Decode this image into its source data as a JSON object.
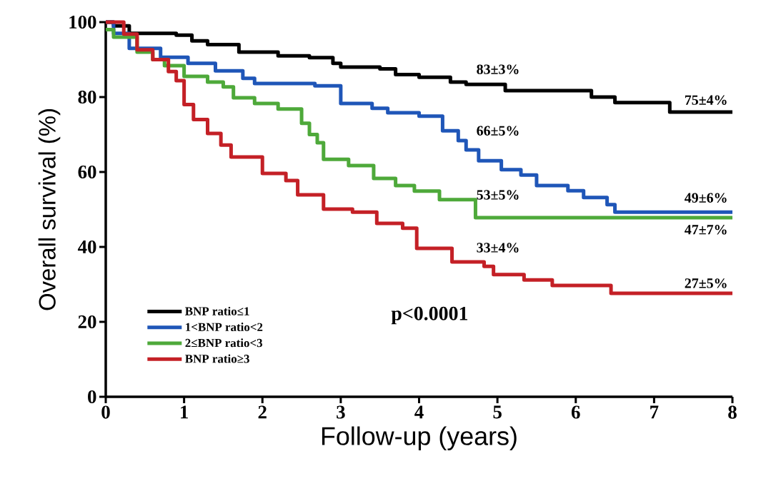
{
  "chart_data": {
    "type": "step",
    "xlabel": "Follow-up (years)",
    "ylabel": "Overall survival (%)",
    "xlim": [
      0,
      8
    ],
    "ylim": [
      0,
      100
    ],
    "xticks": [
      0,
      1,
      2,
      3,
      4,
      5,
      6,
      7,
      8
    ],
    "yticks": [
      0,
      20,
      40,
      60,
      80,
      100
    ],
    "grid": false,
    "legend": "bottom left",
    "line_style": "solid",
    "marker": "none",
    "series": [
      {
        "name": "BNP ratio≤1",
        "color": "#000000",
        "x": [
          0,
          0.1,
          0.3,
          0.9,
          1.1,
          1.3,
          1.7,
          2.2,
          2.6,
          2.9,
          3.0,
          3.5,
          3.7,
          4.0,
          4.4,
          4.6,
          5.1,
          6.2,
          6.5,
          7.2,
          8
        ],
        "values": [
          100,
          99,
          97,
          96.5,
          95,
          94,
          92,
          91,
          90.5,
          89,
          88,
          87.5,
          86,
          85.3,
          84,
          83.4,
          81.7,
          80,
          78.5,
          76,
          76
        ]
      },
      {
        "name": "1<BNP ratio<2",
        "color": "#1f56b8",
        "x": [
          0,
          0.1,
          0.3,
          0.7,
          1.05,
          1.4,
          1.75,
          1.9,
          2.67,
          3.0,
          3.4,
          3.6,
          4.0,
          4.3,
          4.5,
          4.6,
          4.76,
          5.05,
          5.3,
          5.5,
          5.9,
          6.1,
          6.4,
          6.5,
          8
        ],
        "values": [
          100,
          97,
          93,
          90.6,
          89,
          87,
          85,
          83.6,
          83,
          78.3,
          77,
          75.8,
          74.9,
          71,
          68.4,
          65.9,
          63,
          60.6,
          59.2,
          56.4,
          55,
          53.2,
          51.3,
          49.3,
          49.3
        ]
      },
      {
        "name": "2≤BNP ratio<3",
        "color": "#4ea93a",
        "x": [
          0,
          0.1,
          0.4,
          0.6,
          0.75,
          1.0,
          1.3,
          1.5,
          1.63,
          1.9,
          2.2,
          2.5,
          2.6,
          2.7,
          2.78,
          3.1,
          3.42,
          3.7,
          3.94,
          4.26,
          4.72,
          8
        ],
        "values": [
          98,
          96,
          92,
          90,
          88.4,
          85.5,
          84,
          82.7,
          79.8,
          78.3,
          76.8,
          73,
          70,
          67.8,
          63.4,
          61.7,
          58.3,
          56.4,
          54.9,
          52.6,
          47.8,
          47.8
        ]
      },
      {
        "name": "BNP ratio≥3",
        "color": "#c42026",
        "x": [
          0,
          0.23,
          0.4,
          0.6,
          0.8,
          0.9,
          1.0,
          1.12,
          1.3,
          1.47,
          1.6,
          2.0,
          2.3,
          2.45,
          2.78,
          3.15,
          3.46,
          3.79,
          3.97,
          4.42,
          4.83,
          4.95,
          5.34,
          5.7,
          6.45,
          8
        ],
        "values": [
          100,
          96.8,
          92.6,
          90,
          86.8,
          84.4,
          78,
          74,
          70.3,
          67.2,
          64,
          59.6,
          57.7,
          53.9,
          50.1,
          49.3,
          46.3,
          45,
          39.6,
          36,
          34.8,
          32.6,
          31.2,
          29.7,
          27.6,
          27.6
        ]
      }
    ],
    "annotations": [
      "83±3%",
      "66±5%",
      "53±5%",
      "33±4%",
      "75±4%",
      "49±6%",
      "47±7%",
      "27±5%",
      "p<0.0001"
    ]
  }
}
